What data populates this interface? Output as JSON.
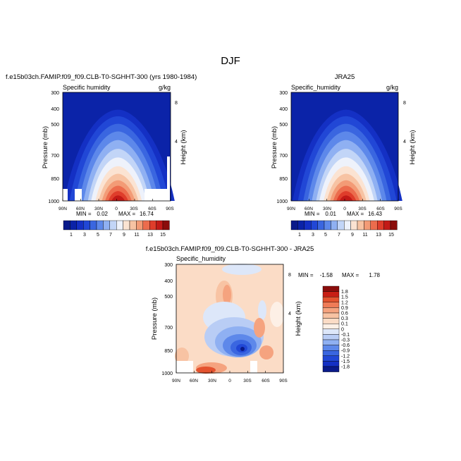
{
  "page": {
    "title": "DJF"
  },
  "colors": {
    "abs_scale": [
      "#0a1a8a",
      "#0b23a8",
      "#1430c4",
      "#2147d6",
      "#3a66e0",
      "#5d88ea",
      "#8fb0f2",
      "#c2d5f7",
      "#eef2fb",
      "#fbe3d2",
      "#f7c3a3",
      "#f39b76",
      "#ec6c4d",
      "#df3d2b",
      "#c21a17",
      "#8b0d0b"
    ],
    "diff_scale": [
      "#0a1a8a",
      "#1430c4",
      "#2147d6",
      "#3a66e0",
      "#5d88ea",
      "#8fb0f2",
      "#b9cdf5",
      "#dde7f9",
      "#fdf0e6",
      "#fbdcc6",
      "#f8c3a3",
      "#f5a37f",
      "#ef7b57",
      "#e4532f",
      "#c81e14",
      "#8b0d0b"
    ]
  },
  "chart_data": [
    {
      "type": "heatmap",
      "title_left": "f.e15b03ch.FAMIP.f09_f09.CLB-T0-SGHHT-300 (yrs 1980-1984)",
      "variable": "Specific humidity",
      "units": "g/kg",
      "ylabel": "Pressure (mb)",
      "y2label": "Height (km)",
      "xticks": [
        "90N",
        "60N",
        "30N",
        "0",
        "30S",
        "60S",
        "90S"
      ],
      "yticks": [
        "300",
        "400",
        "500",
        "700",
        "850",
        "1000"
      ],
      "y2ticks": [
        "8",
        "4"
      ],
      "ylim": [
        1000,
        300
      ],
      "min_label": "MIN =",
      "min_value": "0.02",
      "max_label": "MAX =",
      "max_value": "16.74",
      "colorbar_labels": [
        "1",
        "3",
        "5",
        "7",
        "9",
        "11",
        "13",
        "15"
      ]
    },
    {
      "type": "heatmap",
      "title_center": "JRA25",
      "variable": "Specific_humidity",
      "units": "g/kg",
      "ylabel": "Pressure (mb)",
      "y2label": "Height (km)",
      "xticks": [
        "90N",
        "60N",
        "30N",
        "0",
        "30S",
        "60S",
        "90S"
      ],
      "yticks": [
        "300",
        "400",
        "500",
        "700",
        "850",
        "1000"
      ],
      "y2ticks": [
        "8",
        "4"
      ],
      "ylim": [
        1000,
        300
      ],
      "min_label": "MIN =",
      "min_value": "0.01",
      "max_label": "MAX =",
      "max_value": "16.43",
      "colorbar_labels": [
        "1",
        "3",
        "5",
        "7",
        "9",
        "11",
        "13",
        "15"
      ]
    },
    {
      "type": "heatmap",
      "title_center": "f.e15b03ch.FAMIP.f09_f09.CLB-T0-SGHHT-300 - JRA25",
      "variable": "Specific_humidity",
      "ylabel": "Pressure (mb)",
      "y2label": "Height (km)",
      "xticks": [
        "90N",
        "60N",
        "30N",
        "0",
        "30S",
        "60S",
        "90S"
      ],
      "yticks": [
        "300",
        "400",
        "500",
        "700",
        "850",
        "1000"
      ],
      "y2ticks": [
        "8",
        "4"
      ],
      "ylim": [
        1000,
        300
      ],
      "min_label": "MIN =",
      "min_value": "-1.58",
      "max_label": "MAX =",
      "max_value": "1.78",
      "colorbar_labels": [
        "1.8",
        "1.5",
        "1.2",
        "0.9",
        "0.6",
        "0.3",
        "0.1",
        "0",
        "-0.1",
        "-0.3",
        "-0.6",
        "-0.9",
        "-1.2",
        "-1.5",
        "-1.8"
      ]
    }
  ]
}
